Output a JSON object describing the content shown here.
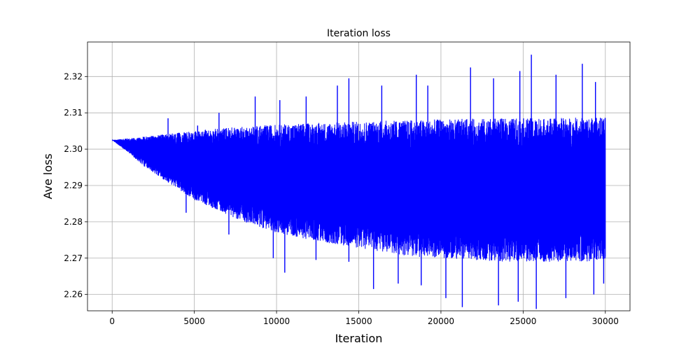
{
  "chart_data": {
    "type": "line",
    "title": "Iteration loss",
    "xlabel": "Iteration",
    "ylabel": "Ave loss",
    "xlim": [
      -1500,
      31500
    ],
    "ylim": [
      2.2555,
      2.3295
    ],
    "x_ticks": [
      0,
      5000,
      10000,
      15000,
      20000,
      25000,
      30000
    ],
    "y_ticks": [
      2.26,
      2.27,
      2.28,
      2.29,
      2.3,
      2.31,
      2.32
    ],
    "grid": true,
    "series": [
      {
        "color": "#0000ff",
        "x_range": [
          0,
          30000
        ],
        "envelope": {
          "x": [
            0,
            1000,
            2000,
            3000,
            4000,
            5000,
            6000,
            7000,
            8000,
            9000,
            10000,
            12000,
            14000,
            16000,
            18000,
            20000,
            22000,
            24000,
            26000,
            28000,
            30000
          ],
          "upper": [
            2.3025,
            2.303,
            2.3035,
            2.304,
            2.3045,
            2.305,
            2.3055,
            2.306,
            2.3062,
            2.3065,
            2.3068,
            2.3072,
            2.3075,
            2.3078,
            2.308,
            2.3082,
            2.3084,
            2.3085,
            2.3086,
            2.3087,
            2.3088
          ],
          "lower": [
            2.3025,
            2.299,
            2.295,
            2.292,
            2.289,
            2.286,
            2.284,
            2.282,
            2.28,
            2.2785,
            2.277,
            2.275,
            2.2735,
            2.272,
            2.2705,
            2.27,
            2.2695,
            2.269,
            2.269,
            2.269,
            2.269
          ]
        },
        "spikes_up": [
          [
            3400,
            2.3085
          ],
          [
            5200,
            2.3065
          ],
          [
            6500,
            2.31
          ],
          [
            8700,
            2.3145
          ],
          [
            10200,
            2.3135
          ],
          [
            11800,
            2.3145
          ],
          [
            13700,
            2.3175
          ],
          [
            14400,
            2.3195
          ],
          [
            16400,
            2.3175
          ],
          [
            18500,
            2.3205
          ],
          [
            19200,
            2.3175
          ],
          [
            21800,
            2.3225
          ],
          [
            23200,
            2.3195
          ],
          [
            24800,
            2.3215
          ],
          [
            25500,
            2.326
          ],
          [
            27000,
            2.3205
          ],
          [
            28600,
            2.3235
          ],
          [
            29400,
            2.3185
          ]
        ],
        "spikes_down": [
          [
            4500,
            2.2825
          ],
          [
            7100,
            2.2765
          ],
          [
            9800,
            2.27
          ],
          [
            10500,
            2.266
          ],
          [
            12400,
            2.2695
          ],
          [
            14400,
            2.269
          ],
          [
            15900,
            2.2615
          ],
          [
            17400,
            2.263
          ],
          [
            18800,
            2.2625
          ],
          [
            20300,
            2.259
          ],
          [
            21300,
            2.2565
          ],
          [
            23500,
            2.257
          ],
          [
            24700,
            2.258
          ],
          [
            25800,
            2.256
          ],
          [
            27600,
            2.259
          ],
          [
            29300,
            2.26
          ],
          [
            29900,
            2.263
          ]
        ]
      }
    ]
  }
}
